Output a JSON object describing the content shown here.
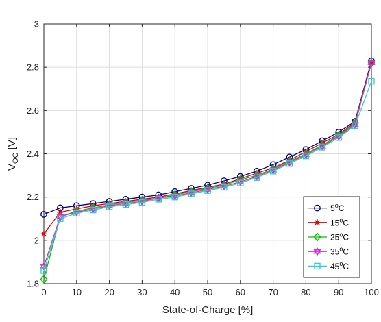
{
  "chart_data": {
    "type": "line",
    "xlabel": "State-of-Charge [%]",
    "ylabel": {
      "main": "V",
      "sub": "OC",
      "unit": " [V]"
    },
    "xlim": [
      0,
      100
    ],
    "ylim": [
      1.8,
      3.0
    ],
    "xticks": [
      "0",
      "10",
      "20",
      "30",
      "40",
      "50",
      "60",
      "70",
      "80",
      "90",
      "100"
    ],
    "yticks": [
      "1.8",
      "2",
      "2.2",
      "2.4",
      "2.6",
      "2.8",
      "3"
    ],
    "grid": true,
    "legend_position": "bottom-right",
    "x": [
      0,
      5,
      10,
      15,
      20,
      25,
      30,
      35,
      40,
      45,
      50,
      55,
      60,
      65,
      70,
      75,
      80,
      85,
      90,
      95,
      100
    ],
    "series": [
      {
        "name": "5°C",
        "label_main": "5",
        "label_sup": "o",
        "label_tail": "C",
        "color": "#00008b",
        "marker": "circle",
        "values": [
          2.12,
          2.15,
          2.16,
          2.17,
          2.18,
          2.19,
          2.2,
          2.21,
          2.225,
          2.24,
          2.255,
          2.275,
          2.295,
          2.32,
          2.35,
          2.385,
          2.42,
          2.46,
          2.5,
          2.55,
          2.83
        ]
      },
      {
        "name": "15°C",
        "label_main": "15",
        "label_sup": "o",
        "label_tail": "C",
        "color": "#e00000",
        "marker": "star",
        "values": [
          2.03,
          2.13,
          2.145,
          2.16,
          2.17,
          2.18,
          2.19,
          2.2,
          2.215,
          2.23,
          2.245,
          2.26,
          2.285,
          2.31,
          2.335,
          2.37,
          2.41,
          2.45,
          2.49,
          2.545,
          2.82
        ]
      },
      {
        "name": "25°C",
        "label_main": "25",
        "label_sup": "o",
        "label_tail": "C",
        "color": "#00c000",
        "marker": "diamond",
        "values": [
          1.82,
          2.11,
          2.135,
          2.15,
          2.165,
          2.175,
          2.185,
          2.195,
          2.21,
          2.225,
          2.24,
          2.255,
          2.28,
          2.3,
          2.33,
          2.365,
          2.4,
          2.44,
          2.485,
          2.54,
          2.82
        ]
      },
      {
        "name": "35°C",
        "label_main": "35",
        "label_sup": "o",
        "label_tail": "C",
        "color": "#cc33cc",
        "marker": "hexagram",
        "values": [
          1.88,
          2.11,
          2.13,
          2.145,
          2.16,
          2.17,
          2.18,
          2.195,
          2.205,
          2.22,
          2.235,
          2.25,
          2.27,
          2.295,
          2.325,
          2.36,
          2.395,
          2.435,
          2.48,
          2.535,
          2.82
        ]
      },
      {
        "name": "45°C",
        "label_main": "45",
        "label_sup": "o",
        "label_tail": "C",
        "color": "#33cccc",
        "marker": "square",
        "values": [
          1.86,
          2.1,
          2.125,
          2.14,
          2.155,
          2.165,
          2.175,
          2.19,
          2.2,
          2.215,
          2.23,
          2.245,
          2.265,
          2.29,
          2.32,
          2.355,
          2.39,
          2.43,
          2.475,
          2.53,
          2.735
        ]
      }
    ]
  }
}
